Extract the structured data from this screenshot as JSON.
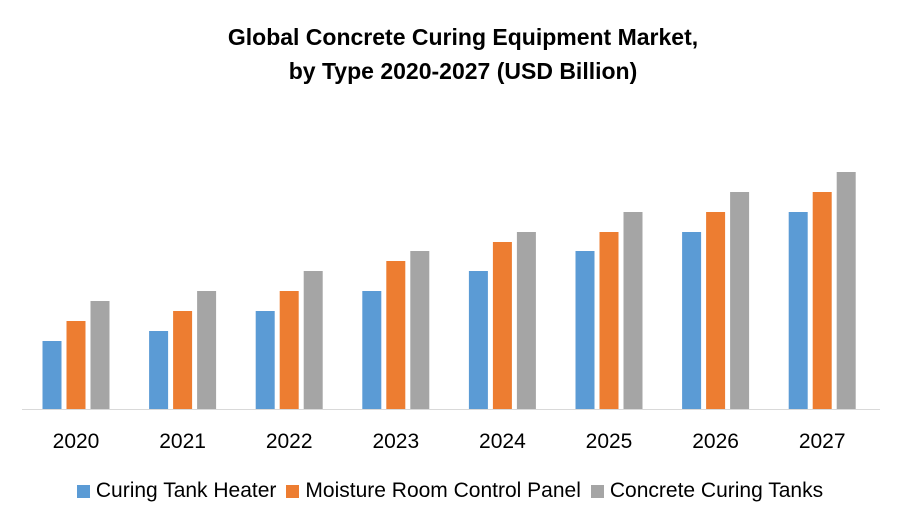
{
  "chart_data": {
    "type": "bar",
    "title_line1": "Global Concrete Curing Equipment Market,",
    "title_line2": "by Type 2020-2027 (USD Billion)",
    "categories": [
      "2020",
      "2021",
      "2022",
      "2023",
      "2024",
      "2025",
      "2026",
      "2027"
    ],
    "series": [
      {
        "name": "Curing Tank Heater",
        "color": "#5B9BD5",
        "values": [
          3.4,
          3.9,
          4.9,
          5.9,
          6.9,
          7.9,
          8.85,
          9.85
        ]
      },
      {
        "name": "Moisture Room Control Panel",
        "color": "#ED7D31",
        "values": [
          4.4,
          4.9,
          5.9,
          7.4,
          8.35,
          8.85,
          9.85,
          10.85
        ]
      },
      {
        "name": "Concrete Curing Tanks",
        "color": "#A5A5A5",
        "values": [
          5.4,
          5.9,
          6.9,
          7.9,
          8.85,
          9.85,
          10.85,
          11.85
        ]
      }
    ],
    "xlabel": "",
    "ylabel": "",
    "y_axis_shown": false,
    "grid": false,
    "legend_position": "bottom"
  }
}
